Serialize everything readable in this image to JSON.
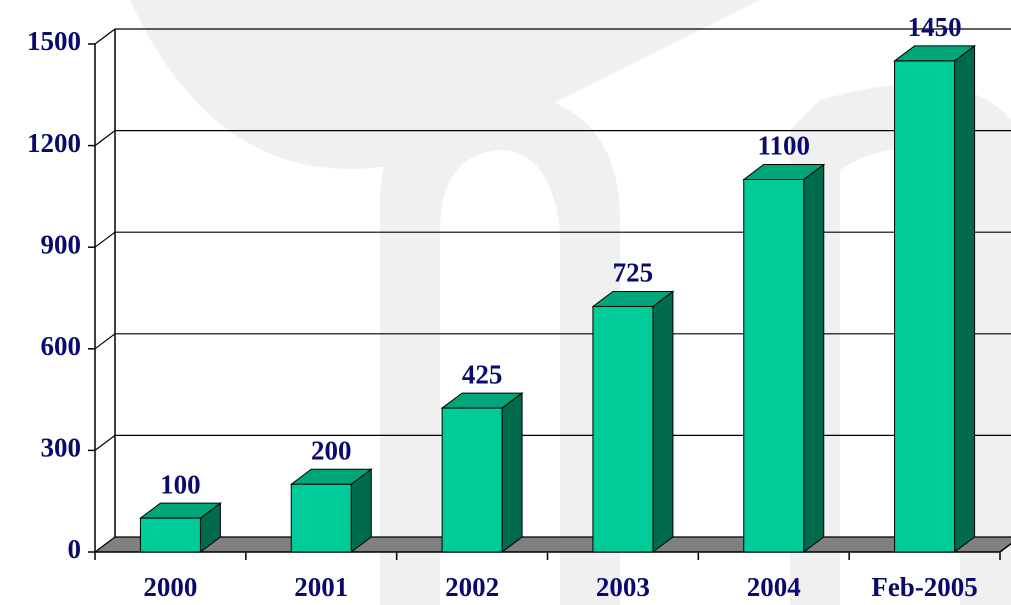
{
  "chart_data": {
    "type": "bar3d",
    "categories": [
      "2000",
      "2001",
      "2002",
      "2003",
      "2004",
      "Feb-2005"
    ],
    "values": [
      100,
      200,
      425,
      725,
      1100,
      1450
    ],
    "color": "#00cc99",
    "ylim": [
      0,
      1500
    ],
    "yticks": [
      0,
      300,
      600,
      900,
      1200,
      1500
    ],
    "grid": true
  }
}
